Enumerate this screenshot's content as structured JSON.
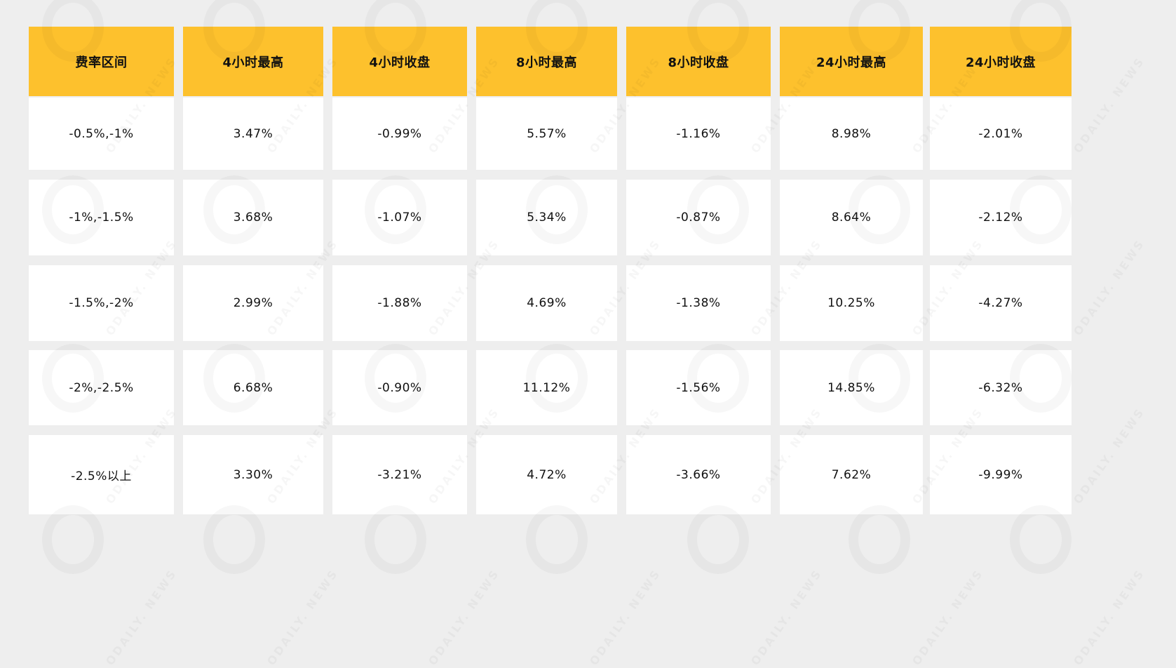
{
  "colors": {
    "background": "#eeeeee",
    "header": "#fdc12d",
    "cell": "#ffffff",
    "text": "#111111"
  },
  "watermark": "ODAILY. NEWS",
  "chart_data": {
    "type": "table",
    "columns": [
      "费率区间",
      "4小时最高",
      "4小时收盘",
      "8小时最高",
      "8小时收盘",
      "24小时最高",
      "24小时收盘"
    ],
    "rows": [
      [
        "-0.5%,-1%",
        "3.47%",
        "-0.99%",
        "5.57%",
        "-1.16%",
        "8.98%",
        "-2.01%"
      ],
      [
        "-1%,-1.5%",
        "3.68%",
        "-1.07%",
        "5.34%",
        "-0.87%",
        "8.64%",
        "-2.12%"
      ],
      [
        "-1.5%,-2%",
        "2.99%",
        "-1.88%",
        "4.69%",
        "-1.38%",
        "10.25%",
        "-4.27%"
      ],
      [
        "-2%,-2.5%",
        "6.68%",
        "-0.90%",
        "11.12%",
        "-1.56%",
        "14.85%",
        "-6.32%"
      ],
      [
        "-2.5%以上",
        "3.30%",
        "-3.21%",
        "4.72%",
        "-3.66%",
        "7.62%",
        "-9.99%"
      ]
    ]
  }
}
